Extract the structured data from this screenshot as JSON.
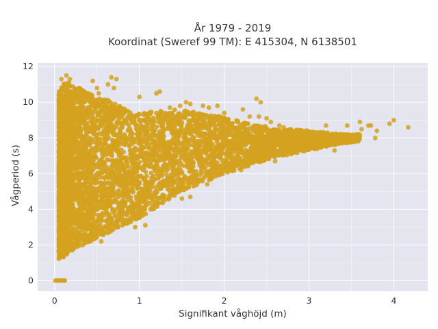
{
  "chart_data": {
    "type": "scatter",
    "title_line1": "År 1979 - 2019",
    "title_line2": "Koordinat (Sweref 99 TM): E 415304, N 6138501",
    "xlabel": "Signifikant våghöjd (m)",
    "ylabel": "Vågperiod (s)",
    "xlim": [
      -0.2,
      4.4
    ],
    "ylim": [
      -0.6,
      12.2
    ],
    "xticks": [
      0,
      1,
      2,
      3,
      4
    ],
    "yticks": [
      0,
      2,
      4,
      6,
      8,
      10,
      12
    ],
    "x_tick_labels": [
      "0",
      "1",
      "2",
      "3",
      "4"
    ],
    "y_tick_labels": [
      "0",
      "2",
      "4",
      "6",
      "8",
      "10",
      "12"
    ],
    "grid": true,
    "legend": "none",
    "colors": {
      "marker": "#d4a21e",
      "plot_background": "#e5e5ef",
      "grid": "#ffffff"
    },
    "series": [
      {
        "envelope": {
          "x": [
            0.05,
            0.1,
            0.15,
            0.2,
            0.25,
            0.3,
            0.4,
            0.5,
            0.6,
            0.7,
            0.8,
            0.9,
            1.0,
            1.2,
            1.4,
            1.6,
            1.8,
            2.0,
            2.2,
            2.4,
            2.6,
            2.8,
            3.0,
            3.2,
            3.4,
            3.6
          ],
          "y_low": [
            1.2,
            1.2,
            1.5,
            1.6,
            1.8,
            1.9,
            2.1,
            2.4,
            2.6,
            2.8,
            3.0,
            3.3,
            3.5,
            4.1,
            4.7,
            5.2,
            5.6,
            6.0,
            6.3,
            6.6,
            6.9,
            7.1,
            7.3,
            7.5,
            7.7,
            7.8
          ],
          "y_high": [
            10.6,
            11.0,
            11.2,
            11.0,
            10.8,
            10.8,
            10.5,
            10.3,
            10.2,
            10.0,
            9.7,
            9.5,
            9.4,
            9.5,
            9.6,
            9.5,
            9.3,
            9.2,
            8.9,
            8.7,
            8.6,
            8.5,
            8.4,
            8.3,
            8.2,
            8.2
          ]
        },
        "points": [
          [
            0.08,
            11.3
          ],
          [
            0.14,
            11.5
          ],
          [
            0.18,
            11.3
          ],
          [
            0.45,
            11.2
          ],
          [
            0.63,
            11.0
          ],
          [
            0.73,
            11.3
          ],
          [
            0.67,
            11.4
          ],
          [
            0.5,
            10.8
          ],
          [
            0.7,
            10.8
          ],
          [
            1.24,
            10.6
          ],
          [
            1.2,
            10.5
          ],
          [
            1.36,
            9.7
          ],
          [
            1.75,
            9.8
          ],
          [
            1.82,
            9.7
          ],
          [
            1.92,
            9.8
          ],
          [
            2.22,
            9.6
          ],
          [
            2.38,
            10.2
          ],
          [
            2.43,
            10.0
          ],
          [
            2.41,
            9.2
          ],
          [
            2.5,
            9.1
          ],
          [
            2.55,
            8.9
          ],
          [
            2.7,
            8.6
          ],
          [
            2.9,
            8.4
          ],
          [
            2.8,
            8.4
          ],
          [
            3.0,
            8.3
          ],
          [
            3.15,
            8.1
          ],
          [
            3.2,
            8.7
          ],
          [
            3.35,
            8.1
          ],
          [
            3.25,
            7.6
          ],
          [
            3.45,
            8.7
          ],
          [
            3.6,
            8.9
          ],
          [
            3.62,
            8.5
          ],
          [
            3.58,
            8.2
          ],
          [
            3.7,
            8.7
          ],
          [
            3.73,
            8.7
          ],
          [
            3.52,
            7.9
          ],
          [
            3.55,
            8.0
          ],
          [
            3.8,
            8.4
          ],
          [
            3.78,
            8.0
          ],
          [
            3.95,
            8.8
          ],
          [
            4.0,
            9.0
          ],
          [
            4.17,
            8.6
          ],
          [
            3.4,
            7.8
          ],
          [
            3.1,
            7.4
          ],
          [
            3.3,
            7.3
          ],
          [
            2.65,
            8.7
          ],
          [
            2.3,
            9.2
          ],
          [
            2.0,
            9.4
          ],
          [
            1.55,
            10.0
          ],
          [
            1.6,
            9.9
          ],
          [
            1.48,
            9.8
          ],
          [
            1.0,
            10.3
          ],
          [
            1.1,
            9.2
          ],
          [
            0.9,
            9.1
          ],
          [
            0.85,
            8.9
          ],
          [
            0.2,
            10.0
          ],
          [
            0.3,
            10.5
          ],
          [
            0.35,
            10.3
          ],
          [
            0.55,
            10.1
          ],
          [
            0.6,
            9.8
          ],
          [
            0.25,
            9.5
          ],
          [
            0.4,
            9.7
          ],
          [
            0.15,
            9.9
          ],
          [
            0.28,
            10.2
          ],
          [
            0.52,
            10.5
          ],
          [
            0.72,
            9.6
          ],
          [
            0.78,
            9.2
          ],
          [
            0.95,
            8.8
          ],
          [
            1.05,
            9.0
          ],
          [
            1.28,
            8.8
          ],
          [
            1.5,
            8.9
          ],
          [
            1.7,
            8.8
          ],
          [
            1.9,
            8.5
          ],
          [
            2.1,
            8.6
          ],
          [
            2.45,
            8.2
          ],
          [
            2.75,
            7.9
          ],
          [
            2.95,
            7.7
          ],
          [
            1.5,
            4.6
          ],
          [
            1.35,
            4.6
          ],
          [
            1.2,
            4.3
          ],
          [
            1.05,
            4.0
          ],
          [
            0.9,
            3.3
          ],
          [
            0.75,
            3.0
          ],
          [
            0.6,
            2.7
          ],
          [
            0.5,
            2.5
          ],
          [
            0.45,
            2.6
          ],
          [
            0.3,
            2.2
          ],
          [
            0.35,
            2.4
          ],
          [
            0.22,
            2.1
          ],
          [
            0.55,
            2.2
          ],
          [
            0.65,
            2.9
          ],
          [
            0.8,
            3.1
          ],
          [
            0.85,
            3.2
          ],
          [
            0.95,
            3.0
          ],
          [
            1.07,
            3.1
          ],
          [
            1.6,
            4.7
          ],
          [
            1.8,
            5.4
          ],
          [
            2.2,
            6.2
          ],
          [
            2.6,
            6.7
          ],
          [
            0.06,
            1.3
          ]
        ],
        "zero_period_points": {
          "x": [
            0.01,
            0.03,
            0.05,
            0.07,
            0.09,
            0.11,
            0.12
          ],
          "y": 0
        }
      }
    ]
  }
}
